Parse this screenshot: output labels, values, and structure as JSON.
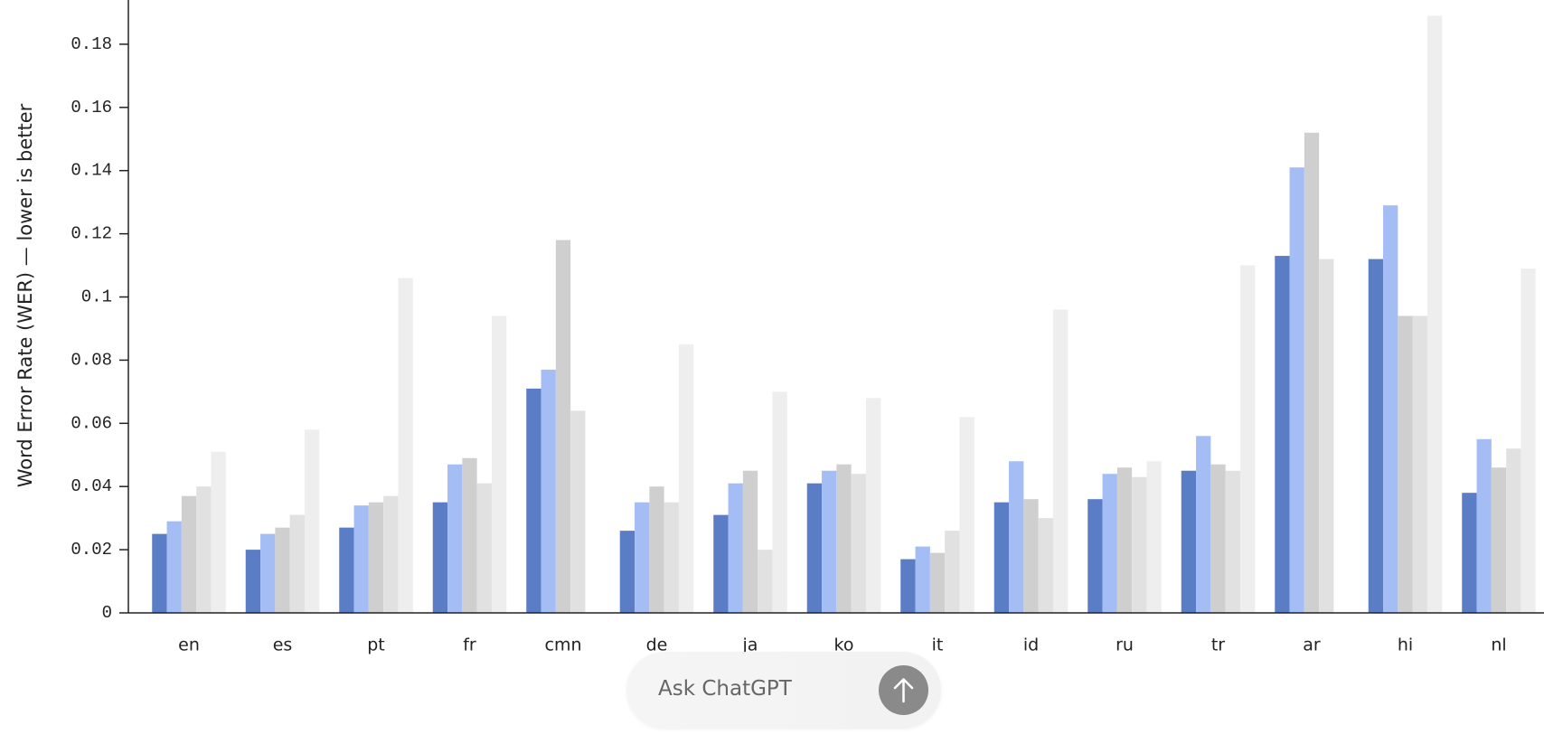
{
  "chart_data": {
    "type": "bar",
    "y_label": "Word Error Rate (WER) — lower is better",
    "categories": [
      "en",
      "es",
      "pt",
      "fr",
      "cmn",
      "de",
      "ja",
      "ko",
      "it",
      "id",
      "ru",
      "tr",
      "ar",
      "hi",
      "nl"
    ],
    "series": [
      {
        "color": "#5a7dc6",
        "values": [
          0.025,
          0.02,
          0.027,
          0.035,
          0.071,
          0.026,
          0.031,
          0.041,
          0.017,
          0.035,
          0.036,
          0.045,
          0.113,
          0.112,
          0.038
        ]
      },
      {
        "color": "#a5bdf5",
        "values": [
          0.029,
          0.025,
          0.034,
          0.047,
          0.077,
          0.035,
          0.041,
          0.045,
          0.021,
          0.048,
          0.044,
          0.056,
          0.141,
          0.129,
          0.055
        ]
      },
      {
        "color": "#cfcfcf",
        "values": [
          0.037,
          0.027,
          0.035,
          0.049,
          0.118,
          0.04,
          0.045,
          0.047,
          0.019,
          0.036,
          0.046,
          0.047,
          0.152,
          0.094,
          0.046
        ]
      },
      {
        "color": "#e1e1e1",
        "values": [
          0.04,
          0.031,
          0.037,
          0.041,
          0.064,
          0.035,
          0.02,
          0.044,
          0.026,
          0.03,
          0.043,
          0.045,
          0.112,
          0.094,
          0.052
        ]
      },
      {
        "color": "#eeeeee",
        "values": [
          0.051,
          0.058,
          0.106,
          0.094,
          null,
          0.085,
          0.07,
          0.068,
          0.062,
          0.096,
          0.048,
          0.11,
          null,
          0.189,
          0.109
        ]
      }
    ],
    "ylim": [
      0,
      0.194
    ],
    "yticks": [
      0,
      0.02,
      0.04,
      0.06,
      0.08,
      0.1,
      0.12,
      0.14,
      0.16,
      0.18
    ]
  },
  "ui": {
    "input_placeholder": "Ask ChatGPT"
  }
}
